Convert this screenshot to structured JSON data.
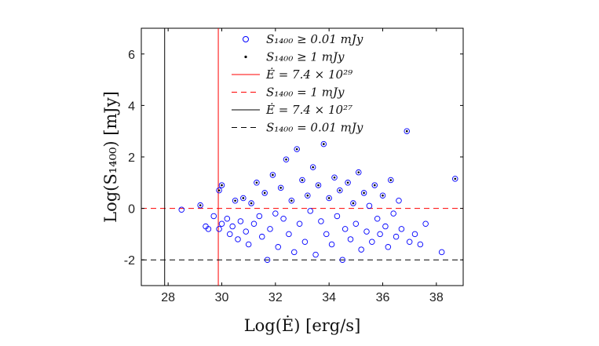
{
  "chart_data": {
    "type": "scatter",
    "xlabel": "Log(Ė) [erg/s]",
    "ylabel": "Log(S₁₄₀₀) [mJy]",
    "xlim": [
      27,
      39
    ],
    "ylim": [
      -3,
      7
    ],
    "x_ticks": [
      28,
      30,
      32,
      34,
      36,
      38
    ],
    "y_ticks": [
      -2,
      0,
      2,
      4,
      6
    ],
    "x_tick_labels": [
      "28",
      "30",
      "32",
      "34",
      "36",
      "38"
    ],
    "y_tick_labels": [
      "-2",
      "0",
      "2",
      "4",
      "6"
    ],
    "grid": false,
    "legend_position": "top-center",
    "colors": {
      "open_circles": "#0000ff",
      "dots": "#000000",
      "red_lines": "#ff0000",
      "black_lines": "#000000"
    },
    "legend": [
      {
        "label": "S₁₄₀₀ ≥ 0.01 mJy",
        "marker": "open-circle",
        "color": "#0000ff"
      },
      {
        "label": "S₁₄₀₀ ≥ 1 mJy",
        "marker": "dot",
        "color": "#000000"
      },
      {
        "label": "Ė = 7.4 × 10²⁹",
        "marker": "solid-line",
        "color": "#ff0000"
      },
      {
        "label": "S₁₄₀₀ = 1 mJy",
        "marker": "dashed-line",
        "color": "#ff0000"
      },
      {
        "label": "Ė = 7.4 × 10²⁷",
        "marker": "solid-line",
        "color": "#000000"
      },
      {
        "label": "S₁₄₀₀ = 0.01 mJy",
        "marker": "dashed-line",
        "color": "#000000"
      }
    ],
    "reference_lines": [
      {
        "orientation": "vertical",
        "value": 29.87,
        "style": "solid",
        "color": "#ff0000"
      },
      {
        "orientation": "horizontal",
        "value": 0,
        "style": "dashed",
        "color": "#ff0000"
      },
      {
        "orientation": "vertical",
        "value": 27.87,
        "style": "solid",
        "color": "#000000"
      },
      {
        "orientation": "horizontal",
        "value": -2,
        "style": "dashed",
        "color": "#000000"
      }
    ],
    "series": [
      {
        "name": "S₁₄₀₀ ≥ 0.01 mJy",
        "marker": "open-circle",
        "points": [
          [
            28.5,
            -0.05
          ],
          [
            29.2,
            0.12
          ],
          [
            29.4,
            -0.7
          ],
          [
            29.5,
            -0.8
          ],
          [
            29.7,
            -0.3
          ],
          [
            29.9,
            -0.8
          ],
          [
            30.0,
            -0.6
          ],
          [
            29.9,
            0.7
          ],
          [
            30.0,
            0.9
          ],
          [
            30.2,
            -0.4
          ],
          [
            30.3,
            -1.0
          ],
          [
            30.4,
            -0.7
          ],
          [
            30.5,
            0.3
          ],
          [
            30.6,
            -1.2
          ],
          [
            30.7,
            -0.5
          ],
          [
            30.8,
            0.4
          ],
          [
            30.9,
            -0.9
          ],
          [
            31.0,
            -1.4
          ],
          [
            31.1,
            0.2
          ],
          [
            31.2,
            -0.6
          ],
          [
            31.3,
            1.0
          ],
          [
            31.4,
            -0.3
          ],
          [
            31.5,
            -1.1
          ],
          [
            31.6,
            0.6
          ],
          [
            31.7,
            -2.0
          ],
          [
            31.8,
            -0.8
          ],
          [
            31.9,
            1.3
          ],
          [
            32.0,
            -0.2
          ],
          [
            32.1,
            -1.5
          ],
          [
            32.2,
            0.8
          ],
          [
            32.3,
            -0.4
          ],
          [
            32.4,
            1.9
          ],
          [
            32.5,
            -1.0
          ],
          [
            32.6,
            0.3
          ],
          [
            32.7,
            -1.7
          ],
          [
            32.8,
            2.3
          ],
          [
            32.9,
            -0.6
          ],
          [
            33.0,
            1.1
          ],
          [
            33.1,
            -1.3
          ],
          [
            33.2,
            0.5
          ],
          [
            33.3,
            -0.1
          ],
          [
            33.4,
            1.6
          ],
          [
            33.5,
            -1.8
          ],
          [
            33.6,
            0.9
          ],
          [
            33.7,
            -0.5
          ],
          [
            33.8,
            2.5
          ],
          [
            33.9,
            -1.0
          ],
          [
            34.0,
            0.4
          ],
          [
            34.1,
            -1.4
          ],
          [
            34.2,
            1.2
          ],
          [
            34.3,
            -0.3
          ],
          [
            34.4,
            0.7
          ],
          [
            34.5,
            -2.0
          ],
          [
            34.6,
            -0.8
          ],
          [
            34.7,
            1.0
          ],
          [
            34.8,
            -1.2
          ],
          [
            34.9,
            0.2
          ],
          [
            35.0,
            -0.6
          ],
          [
            35.1,
            1.4
          ],
          [
            35.2,
            -1.6
          ],
          [
            35.3,
            0.6
          ],
          [
            35.4,
            -0.9
          ],
          [
            35.5,
            0.1
          ],
          [
            35.6,
            -1.3
          ],
          [
            35.7,
            0.9
          ],
          [
            35.8,
            -0.4
          ],
          [
            35.9,
            -1.0
          ],
          [
            36.0,
            0.5
          ],
          [
            36.1,
            -0.7
          ],
          [
            36.2,
            -1.5
          ],
          [
            36.3,
            1.1
          ],
          [
            36.4,
            -0.2
          ],
          [
            36.5,
            -1.1
          ],
          [
            36.6,
            0.3
          ],
          [
            36.7,
            -0.8
          ],
          [
            36.9,
            3.0
          ],
          [
            37.0,
            -1.3
          ],
          [
            37.2,
            -1.0
          ],
          [
            37.4,
            -1.4
          ],
          [
            37.6,
            -0.6
          ],
          [
            38.2,
            -1.7
          ],
          [
            38.7,
            1.15
          ]
        ]
      },
      {
        "name": "S₁₄₀₀ ≥ 1 mJy",
        "marker": "dot",
        "points": [
          [
            29.2,
            0.12
          ],
          [
            29.9,
            0.7
          ],
          [
            30.0,
            0.9
          ],
          [
            30.5,
            0.3
          ],
          [
            30.8,
            0.4
          ],
          [
            31.1,
            0.2
          ],
          [
            31.3,
            1.0
          ],
          [
            31.6,
            0.6
          ],
          [
            31.9,
            1.3
          ],
          [
            32.2,
            0.8
          ],
          [
            32.4,
            1.9
          ],
          [
            32.6,
            0.3
          ],
          [
            32.8,
            2.3
          ],
          [
            33.0,
            1.1
          ],
          [
            33.2,
            0.5
          ],
          [
            33.4,
            1.6
          ],
          [
            33.6,
            0.9
          ],
          [
            33.8,
            2.5
          ],
          [
            34.0,
            0.4
          ],
          [
            34.2,
            1.2
          ],
          [
            34.4,
            0.7
          ],
          [
            34.7,
            1.0
          ],
          [
            34.9,
            0.2
          ],
          [
            35.1,
            1.4
          ],
          [
            35.3,
            0.6
          ],
          [
            35.7,
            0.9
          ],
          [
            36.0,
            0.5
          ],
          [
            36.3,
            1.1
          ],
          [
            36.9,
            3.0
          ],
          [
            38.7,
            1.15
          ]
        ]
      }
    ]
  }
}
